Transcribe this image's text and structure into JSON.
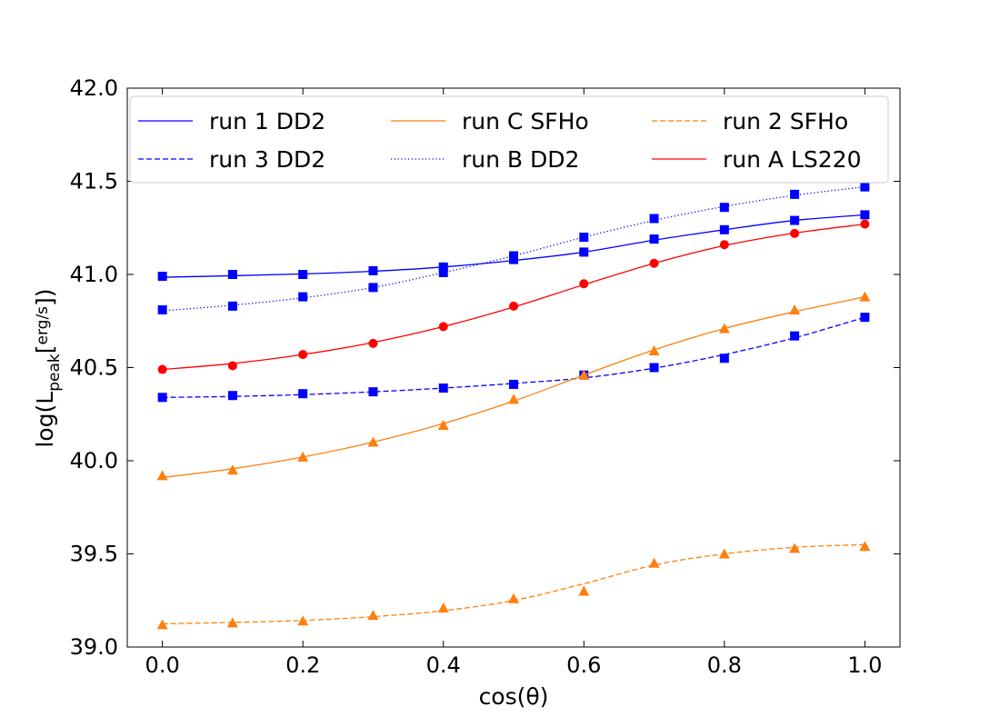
{
  "chart_data": {
    "type": "line",
    "xlabel": "cos(θ)",
    "ylabel_parts": {
      "prefix": "log(L",
      "subscript": "peak",
      "frac_num": "erg",
      "frac_den": "s"
    },
    "xlim": [
      -0.05,
      1.05
    ],
    "ylim": [
      39.0,
      42.0
    ],
    "xticks": [
      0.0,
      0.2,
      0.4,
      0.6,
      0.8,
      1.0
    ],
    "xtick_labels": [
      "0.0",
      "0.2",
      "0.4",
      "0.6",
      "0.8",
      "1.0"
    ],
    "yticks": [
      39.0,
      39.5,
      40.0,
      40.5,
      41.0,
      41.5,
      42.0
    ],
    "ytick_labels": [
      "39.0",
      "39.5",
      "40.0",
      "40.5",
      "41.0",
      "41.5",
      "42.0"
    ],
    "legend_position": "top",
    "x": [
      0.0,
      0.1,
      0.2,
      0.3,
      0.4,
      0.5,
      0.6,
      0.7,
      0.8,
      0.9,
      1.0
    ],
    "series": [
      {
        "name": "run 1 DD2",
        "color": "#0000ff",
        "line_style": "solid",
        "marker": "square",
        "values": [
          40.99,
          41.0,
          41.0,
          41.02,
          41.04,
          41.08,
          41.12,
          41.19,
          41.24,
          41.29,
          41.32
        ],
        "fit": [
          40.985,
          40.993,
          41.003,
          41.017,
          41.04,
          41.075,
          41.12,
          41.184,
          41.24,
          41.29,
          41.32
        ]
      },
      {
        "name": "run 3 DD2",
        "color": "#0000ff",
        "line_style": "dashed",
        "marker": "square",
        "values": [
          40.34,
          40.35,
          40.36,
          40.37,
          40.39,
          40.41,
          40.46,
          40.5,
          40.55,
          40.67,
          40.77
        ],
        "fit": [
          40.34,
          40.345,
          40.355,
          40.37,
          40.39,
          40.415,
          40.445,
          40.497,
          40.57,
          40.66,
          40.77
        ]
      },
      {
        "name": "run B DD2",
        "color": "#0000ff",
        "line_style": "dotted",
        "marker": "square",
        "values": [
          40.81,
          40.83,
          40.88,
          40.93,
          41.01,
          41.1,
          41.2,
          41.3,
          41.36,
          41.43,
          41.47
        ],
        "fit": [
          40.805,
          40.835,
          40.875,
          40.93,
          41.01,
          41.1,
          41.2,
          41.29,
          41.365,
          41.425,
          41.47
        ]
      },
      {
        "name": "run A LS220",
        "color": "#ff0000",
        "line_style": "solid",
        "marker": "circle",
        "values": [
          40.49,
          40.51,
          40.57,
          40.63,
          40.72,
          40.83,
          40.95,
          41.06,
          41.16,
          41.22,
          41.27
        ],
        "fit": [
          40.49,
          40.522,
          40.57,
          40.635,
          40.72,
          40.825,
          40.945,
          41.06,
          41.155,
          41.222,
          41.27
        ]
      },
      {
        "name": "run C SFHo",
        "color": "#ff7f0e",
        "line_style": "solid",
        "marker": "triangle",
        "values": [
          39.92,
          39.95,
          40.02,
          40.1,
          40.19,
          40.33,
          40.46,
          40.59,
          40.71,
          40.81,
          40.88
        ],
        "fit": [
          39.91,
          39.957,
          40.02,
          40.1,
          40.2,
          40.32,
          40.46,
          40.595,
          40.71,
          40.8,
          40.88
        ]
      },
      {
        "name": "run 2 SFHo",
        "color": "#ff7f0e",
        "line_style": "dashed",
        "marker": "triangle",
        "values": [
          39.12,
          39.13,
          39.14,
          39.17,
          39.21,
          39.26,
          39.3,
          39.45,
          39.5,
          39.53,
          39.54
        ],
        "fit": [
          39.125,
          39.132,
          39.143,
          39.163,
          39.195,
          39.25,
          39.34,
          39.44,
          39.5,
          39.535,
          39.55
        ]
      }
    ],
    "legend_order": [
      [
        "run 1 DD2",
        "run C SFHo",
        "run 2 SFHo"
      ],
      [
        "run 3 DD2",
        "run B DD2",
        "run A LS220"
      ]
    ]
  }
}
